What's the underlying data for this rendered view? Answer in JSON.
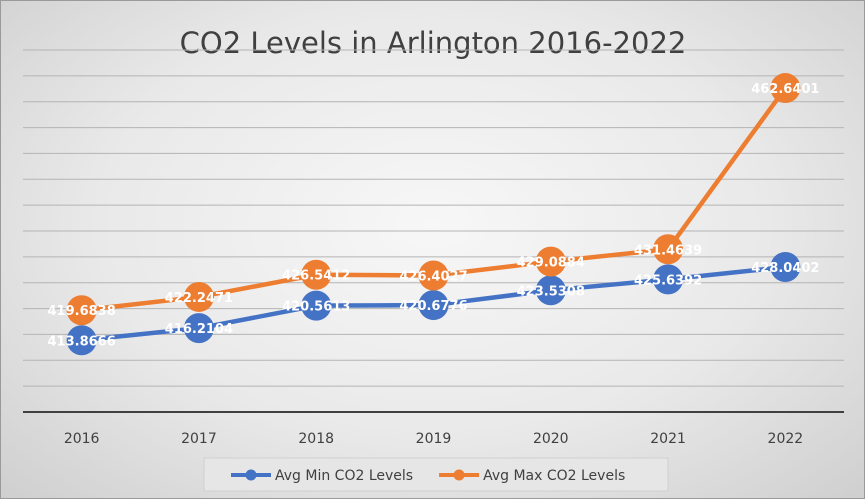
{
  "chart_data": {
    "type": "line",
    "title": "CO2 Levels in Arlington 2016-2022",
    "categories": [
      "2016",
      "2017",
      "2018",
      "2019",
      "2020",
      "2021",
      "2022"
    ],
    "series": [
      {
        "name": "Avg Min CO2 Levels",
        "color": "#4472C4",
        "values": [
          413.8666,
          416.2104,
          420.5613,
          420.6776,
          423.5308,
          425.6392,
          428.0402
        ],
        "labels": [
          "413.8666",
          "416.2104",
          "420.5613",
          "420.6776",
          "423.5308",
          "425.6392",
          "428.0402"
        ]
      },
      {
        "name": "Avg Max CO2 Levels",
        "color": "#ED7D31",
        "values": [
          419.6838,
          422.2471,
          426.5412,
          426.4027,
          429.0884,
          431.4639,
          462.6401
        ],
        "labels": [
          "419.6838",
          "422.2471",
          "426.5412",
          "426.4027",
          "429.0884",
          "431.4639",
          "462.6401"
        ]
      }
    ],
    "ylim": [
      400,
      470
    ],
    "ytick_step": 5,
    "y_tick_labels_shown": false,
    "grid": "horizontal",
    "legend_position": "bottom",
    "data_labels": true
  }
}
